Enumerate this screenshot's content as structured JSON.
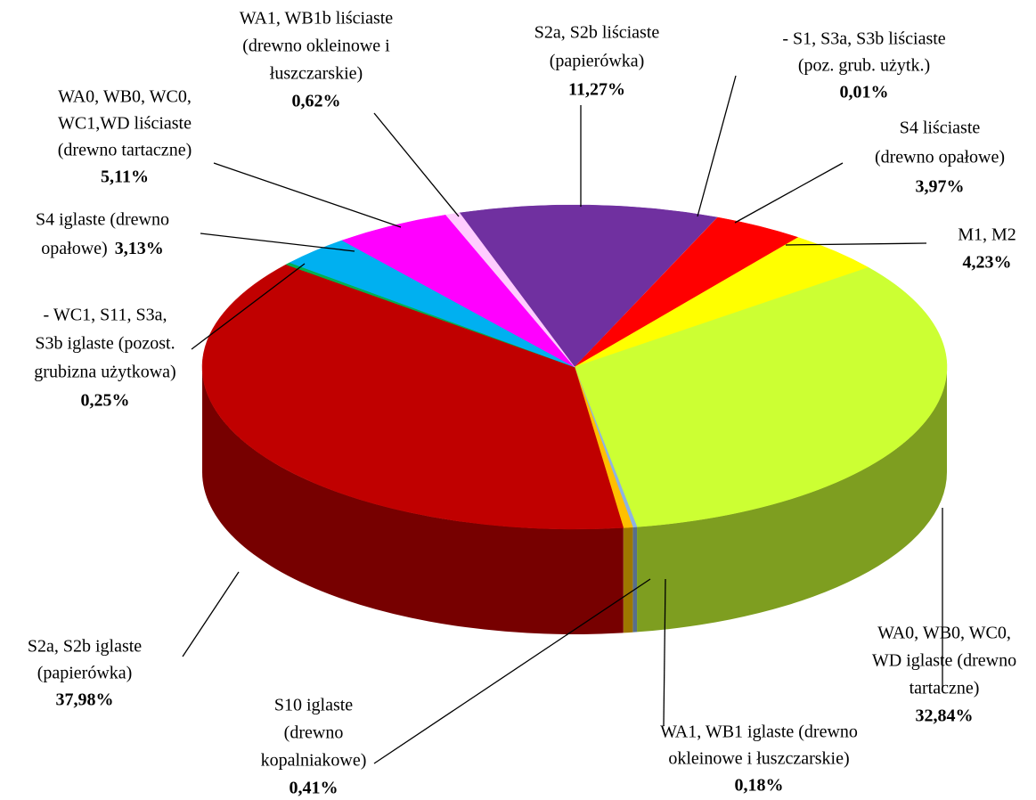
{
  "chart_data": {
    "type": "pie",
    "categories": [
      [
        "S2a, S2b liściaste",
        "(papierówka)"
      ],
      [
        "- S1, S3a, S3b liściaste",
        "(poz. grub. użytk.)"
      ],
      [
        "S4 liściaste",
        "(drewno opałowe)"
      ],
      [
        "M1, M2"
      ],
      [
        "WA0, WB0, WC0,",
        "WD iglaste (drewno",
        "tartaczne)"
      ],
      [
        "WA1, WB1 iglaste (drewno",
        "okleinowe i łuszczarskie)"
      ],
      [
        "S10 iglaste",
        "(drewno",
        "kopalniakowe)"
      ],
      [
        "S2a, S2b iglaste",
        "(papierówka)"
      ],
      [
        "- WC1, S11, S3a,",
        "S3b iglaste (pozost.",
        "grubizna użytkowa)"
      ],
      [
        "S4 iglaste (drewno",
        "opałowe)"
      ],
      [
        "WA0, WB0, WC0,",
        "WC1,WD liściaste",
        "(drewno tartaczne)"
      ],
      [
        "WA1, WB1b liściaste",
        "(drewno okleinowe i",
        "łuszczarskie)"
      ]
    ],
    "values": [
      11.27,
      0.01,
      3.97,
      4.23,
      32.84,
      0.18,
      0.41,
      37.98,
      0.25,
      3.13,
      5.11,
      0.62
    ],
    "value_labels": [
      "11,27%",
      "0,01%",
      "3,97%",
      "4,23%",
      "32,84%",
      "0,18%",
      "0,41%",
      "37,98%",
      "0,25%",
      "3,13%",
      "5,11%",
      "0,62%"
    ],
    "colors": [
      "#7030a0",
      "#ff9999",
      "#ff0000",
      "#ffff00",
      "#ccff33",
      "#8db3e2",
      "#ffc000",
      "#c00000",
      "#00b050",
      "#00b0f0",
      "#ff00ff",
      "#ffccff"
    ]
  }
}
